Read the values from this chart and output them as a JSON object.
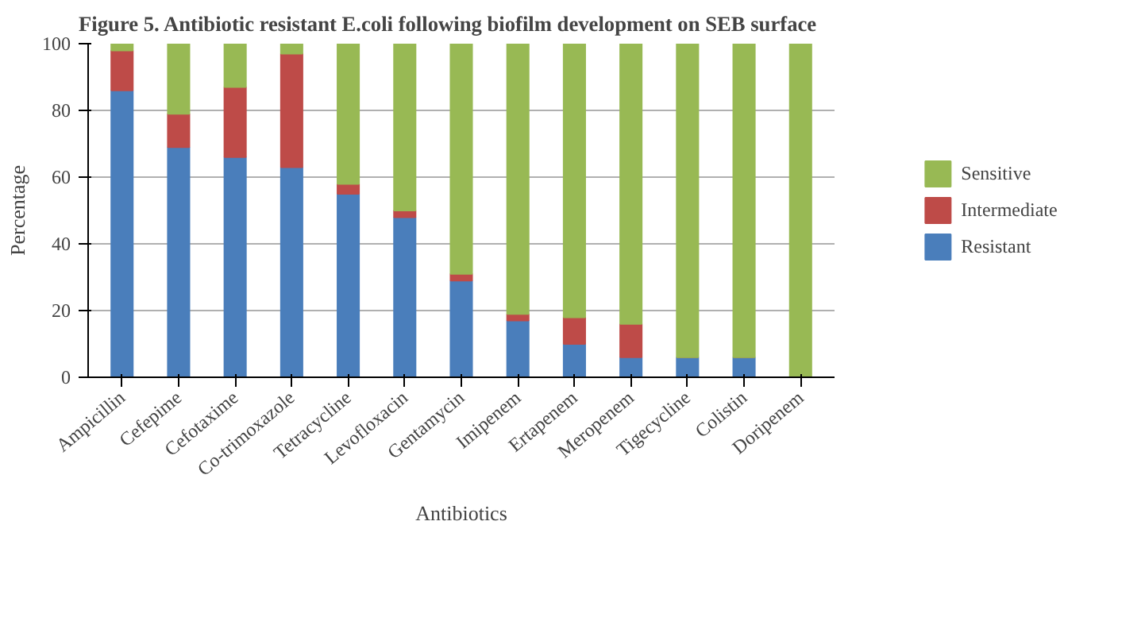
{
  "chart_data": {
    "type": "bar",
    "stacked": true,
    "title": "Figure 5. Antibiotic  resistant E.coli following  biofilm  development   on SEB surface",
    "xlabel": "Antibiotics",
    "ylabel": "Percentage",
    "categories": [
      "Ampicillin",
      "Cefepime",
      "Cefotaxime",
      "Co-trimoxazole",
      "Tetracycline",
      "Levofloxacin",
      "Gentamycin",
      "Imipenem",
      "Ertapenem",
      "Meropenem",
      "Tigecycline",
      "Colistin",
      "Doripenem"
    ],
    "series": [
      {
        "name": "Resistant",
        "color": "#4a7ebb",
        "values": [
          86,
          69,
          66,
          63,
          55,
          48,
          29,
          17,
          10,
          6,
          6,
          6,
          0
        ]
      },
      {
        "name": "Intermediate",
        "color": "#be4b48",
        "values": [
          12,
          10,
          21,
          34,
          3,
          2,
          2,
          2,
          8,
          10,
          0,
          0,
          0
        ]
      },
      {
        "name": "Sensitive",
        "color": "#98b954",
        "values": [
          2,
          21,
          13,
          3,
          42,
          50,
          69,
          81,
          82,
          84,
          94,
          94,
          100
        ]
      }
    ],
    "ylim": [
      0,
      100
    ],
    "yticks": [
      0,
      20,
      40,
      60,
      80,
      100
    ],
    "grid": "y",
    "legend": "right"
  }
}
